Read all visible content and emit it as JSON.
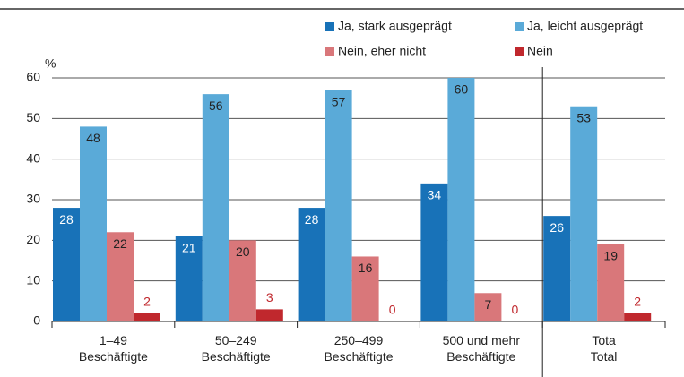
{
  "chart_data": {
    "type": "bar",
    "y_label": "%",
    "categories": [
      "1–49 Beschäftigte",
      "50–249 Beschäftigte",
      "250–499 Beschäftigte",
      "500 und mehr Beschäftigte",
      "Total"
    ],
    "series": [
      {
        "name": "Ja, stark ausgeprägt",
        "color": "#1872b8",
        "values": [
          28,
          21,
          28,
          34,
          26
        ]
      },
      {
        "name": "Ja, leicht ausgeprägt",
        "color": "#5aaad8",
        "values": [
          48,
          56,
          57,
          60,
          53
        ]
      },
      {
        "name": "Nein, eher nicht",
        "color": "#d9777a",
        "values": [
          22,
          20,
          16,
          7,
          19
        ]
      },
      {
        "name": "Nein",
        "color": "#c0282d",
        "values": [
          2,
          3,
          0,
          0,
          2
        ]
      }
    ],
    "ylim": [
      0,
      60
    ],
    "yticks": [
      0,
      10,
      20,
      30,
      40,
      50,
      60
    ],
    "grid": true
  }
}
